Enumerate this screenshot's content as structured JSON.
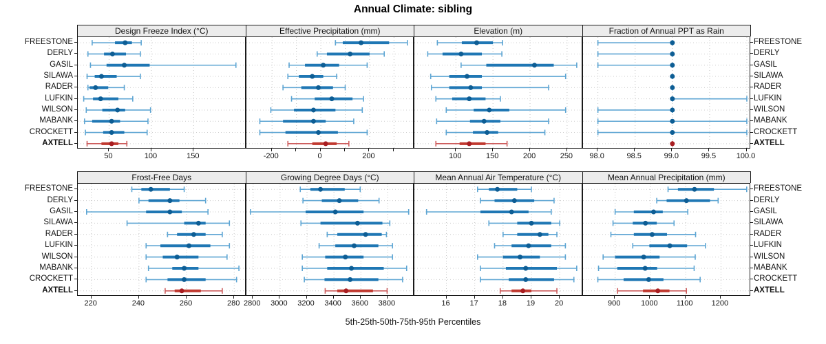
{
  "title": "Annual Climate: sibling",
  "caption": "5th-25th-50th-75th-95th Percentiles",
  "stations": [
    "FREESTONE",
    "DERLY",
    "GASIL",
    "SILAWA",
    "RADER",
    "LUFKIN",
    "WILSON",
    "MABANK",
    "CROCKETT",
    "AXTELL"
  ],
  "highlight_station": "AXTELL",
  "colors": {
    "blue_whisker": "#5da5d3",
    "blue_bar": "#1f77b4",
    "blue_dot": "#0d5d94",
    "red_whisker": "#cd5c5c",
    "red_bar": "#c0392f",
    "red_dot": "#a81e22",
    "grid": "#c4c4c4",
    "row_guide": "#cccccc",
    "border": "#1a1a1a",
    "header_bg": "#ececec"
  },
  "chart_data": {
    "type": "dotplot-percentiles",
    "percentiles": [
      5,
      25,
      50,
      75,
      95
    ],
    "legend_note": "thin whisker = 5th-95th, thick bar = 25th-75th, dot = 50th",
    "rows": [
      [
        {
          "title": "Design Freeze Index (°C)",
          "xlim": [
            13,
            212
          ],
          "ticks": [
            50,
            100,
            150
          ],
          "tick_labels": [
            "50",
            "100",
            "150"
          ],
          "values": [
            [
              30,
              57,
              69,
              77,
              88
            ],
            [
              25,
              44,
              54,
              70,
              87
            ],
            [
              28,
              47,
              68,
              98,
              200
            ],
            [
              24,
              33,
              41,
              59,
              87
            ],
            [
              25,
              27,
              34,
              49,
              68
            ],
            [
              20,
              31,
              40,
              61,
              78
            ],
            [
              23,
              42,
              60,
              69,
              99
            ],
            [
              21,
              30,
              53,
              63,
              96
            ],
            [
              22,
              43,
              53,
              68,
              95
            ],
            [
              24,
              41,
              53,
              61,
              71
            ]
          ]
        },
        {
          "title": "Effective Precipitation (mm)",
          "xlim": [
            -305,
            385
          ],
          "ticks": [
            -200,
            -100,
            0,
            100,
            200,
            300
          ],
          "tick_labels": [
            "-200",
            "",
            "0",
            "",
            "200",
            ""
          ],
          "values": [
            [
              60,
              90,
              165,
              280,
              355
            ],
            [
              -15,
              25,
              120,
              200,
              260
            ],
            [
              -130,
              -65,
              10,
              75,
              190
            ],
            [
              -135,
              -90,
              -35,
              10,
              65
            ],
            [
              -155,
              -80,
              -10,
              50,
              100
            ],
            [
              -120,
              -25,
              45,
              130,
              175
            ],
            [
              -205,
              -110,
              -30,
              60,
              170
            ],
            [
              -250,
              -155,
              -30,
              20,
              135
            ],
            [
              -250,
              -145,
              -10,
              70,
              190
            ],
            [
              -135,
              -35,
              20,
              65,
              115
            ]
          ]
        },
        {
          "title": "Elevation (m)",
          "xlim": [
            44,
            271
          ],
          "ticks": [
            100,
            150,
            200,
            250
          ],
          "tick_labels": [
            "100",
            "150",
            "200",
            "250"
          ],
          "values": [
            [
              75,
              108,
              128,
              150,
              163
            ],
            [
              62,
              82,
              107,
              135,
              162
            ],
            [
              107,
              141,
              206,
              232,
              263
            ],
            [
              66,
              91,
              115,
              135,
              248
            ],
            [
              67,
              91,
              120,
              135,
              225
            ],
            [
              73,
              95,
              118,
              140,
              160
            ],
            [
              87,
              124,
              145,
              172,
              248
            ],
            [
              74,
              119,
              138,
              160,
              225
            ],
            [
              87,
              123,
              142,
              157,
              220
            ],
            [
              73,
              105,
              118,
              140,
              169
            ]
          ]
        },
        {
          "title": "Fraction of Annual PPT as Rain",
          "xlim": [
            97.8,
            100.06
          ],
          "ticks": [
            98.0,
            98.5,
            99.0,
            99.5,
            100.0
          ],
          "tick_labels": [
            "98.0",
            "98.5",
            "99.0",
            "99.5",
            "100.0"
          ],
          "values": [
            [
              98,
              99,
              99,
              99,
              99
            ],
            [
              98,
              99,
              99,
              99,
              99
            ],
            [
              98,
              99,
              99,
              99,
              99
            ],
            [
              99,
              99,
              99,
              99,
              99
            ],
            [
              99,
              99,
              99,
              99,
              99
            ],
            [
              99,
              99,
              99,
              99,
              100
            ],
            [
              98,
              99,
              99,
              99,
              99
            ],
            [
              98,
              99,
              99,
              99,
              100
            ],
            [
              98,
              99,
              99,
              99,
              100
            ],
            [
              99,
              99,
              99,
              99,
              99
            ]
          ]
        }
      ],
      [
        {
          "title": "Frost-Free Days",
          "xlim": [
            214.3,
            285
          ],
          "ticks": [
            220,
            240,
            260,
            280
          ],
          "tick_labels": [
            "220",
            "240",
            "260",
            "280"
          ],
          "values": [
            [
              237,
              241,
              245,
              253,
              259
            ],
            [
              240,
              244,
              253,
              257,
              268
            ],
            [
              218,
              243,
              253,
              258,
              269
            ],
            [
              235,
              259,
              265,
              268,
              278
            ],
            [
              252,
              256,
              263,
              268,
              275
            ],
            [
              243,
              249,
              261,
              270,
              278
            ],
            [
              243,
              250,
              256,
              265,
              277
            ],
            [
              244,
              254,
              259,
              265,
              282
            ],
            [
              243,
              252,
              259,
              268,
              281
            ],
            [
              251,
              255,
              258,
              266,
              275
            ]
          ]
        },
        {
          "title": "Growing Degree Days (°C)",
          "xlim": [
            2750,
            4000
          ],
          "ticks": [
            2800,
            3000,
            3200,
            3400,
            3600,
            3800
          ],
          "tick_labels": [
            "2800",
            "3000",
            "3200",
            "3400",
            "3600",
            "3800"
          ],
          "values": [
            [
              3150,
              3225,
              3300,
              3480,
              3595
            ],
            [
              3170,
              3310,
              3440,
              3580,
              3735
            ],
            [
              2780,
              3190,
              3410,
              3620,
              3955
            ],
            [
              3155,
              3300,
              3575,
              3760,
              3815
            ],
            [
              3350,
              3425,
              3635,
              3755,
              3790
            ],
            [
              3290,
              3410,
              3550,
              3730,
              3835
            ],
            [
              3165,
              3335,
              3485,
              3620,
              3835
            ],
            [
              3165,
              3350,
              3530,
              3770,
              3940
            ],
            [
              3180,
              3330,
              3520,
              3730,
              3910
            ],
            [
              3335,
              3425,
              3490,
              3690,
              3795
            ]
          ]
        },
        {
          "title": "Mean Annual Air Temperature (°C)",
          "xlim": [
            14.87,
            20.81
          ],
          "ticks": [
            16,
            17,
            18,
            19,
            20
          ],
          "tick_labels": [
            "16",
            "17",
            "18",
            "19",
            "20"
          ],
          "values": [
            [
              17.1,
              17.5,
              17.8,
              18.5,
              19.0
            ],
            [
              17.2,
              17.7,
              18.4,
              19.1,
              19.8
            ],
            [
              15.3,
              17.2,
              18.3,
              18.9,
              19.7
            ],
            [
              17.5,
              18.5,
              19.0,
              19.7,
              20.0
            ],
            [
              18.0,
              18.5,
              19.3,
              19.6,
              19.9
            ],
            [
              17.7,
              18.3,
              18.9,
              19.7,
              20.2
            ],
            [
              17.1,
              18.0,
              18.6,
              19.3,
              20.2
            ],
            [
              17.2,
              18.1,
              18.8,
              19.9,
              20.6
            ],
            [
              17.2,
              18.2,
              18.8,
              19.8,
              20.5
            ],
            [
              17.9,
              18.3,
              18.7,
              19.0,
              19.9
            ]
          ]
        },
        {
          "title": "Mean Annual Precipitation (mm)",
          "xlim": [
            809,
            1286
          ],
          "ticks": [
            900,
            1000,
            1100,
            1200
          ],
          "tick_labels": [
            "900",
            "1000",
            "1100",
            "1200"
          ],
          "values": [
            [
              1050,
              1078,
              1125,
              1180,
              1273
            ],
            [
              1018,
              1046,
              1102,
              1169,
              1192
            ],
            [
              900,
              953,
              1009,
              1035,
              1106
            ],
            [
              894,
              950,
              986,
              1018,
              1067
            ],
            [
              888,
              953,
              1005,
              1047,
              1128
            ],
            [
              950,
              997,
              1055,
              1104,
              1156
            ],
            [
              866,
              900,
              981,
              1026,
              1127
            ],
            [
              853,
              906,
              985,
              1019,
              1124
            ],
            [
              851,
              924,
              995,
              1037,
              1141
            ],
            [
              907,
              979,
              1021,
              1054,
              1102
            ]
          ]
        }
      ]
    ]
  }
}
